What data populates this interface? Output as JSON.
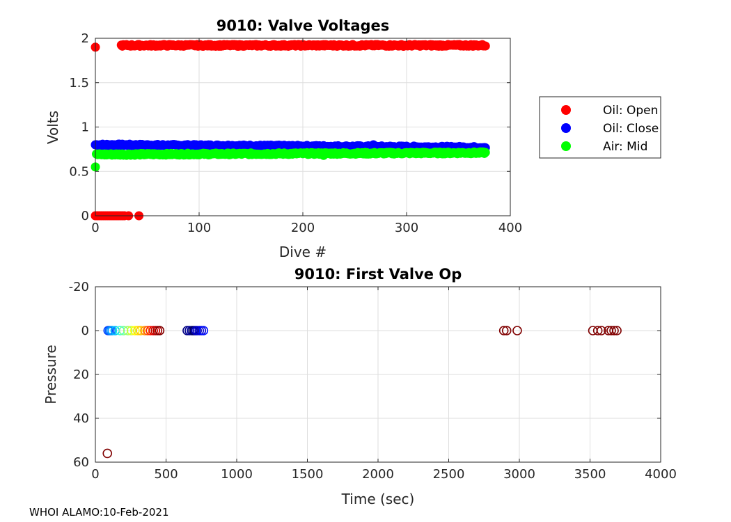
{
  "footer": "WHOI ALAMO:10-Feb-2021",
  "chart_data": [
    {
      "type": "scatter",
      "title": "9010: Valve Voltages",
      "xlabel": "Dive #",
      "ylabel": "Volts",
      "xlim": [
        0,
        400
      ],
      "ylim": [
        0,
        2
      ],
      "xticks": [
        0,
        100,
        200,
        300,
        400
      ],
      "yticks": [
        0,
        0.5,
        1,
        1.5,
        2
      ],
      "xtick_labels": [
        "0",
        "100",
        "200",
        "300",
        "400"
      ],
      "ytick_labels": [
        "0",
        "0.5",
        "1",
        "1.5",
        "2"
      ],
      "grid": true,
      "legend_position": "right-outside",
      "series": [
        {
          "name": "Oil: Open",
          "color": "#ff0000",
          "marker": "filled-circle",
          "dive_range": [
            25,
            376
          ],
          "approx_value": 1.92,
          "extra_points": [
            [
              0,
              1.9
            ],
            [
              0,
              0
            ],
            [
              2,
              0
            ],
            [
              4,
              0
            ],
            [
              6,
              0
            ],
            [
              8,
              0
            ],
            [
              10,
              0
            ],
            [
              12,
              0
            ],
            [
              14,
              0
            ],
            [
              16,
              0
            ],
            [
              18,
              0
            ],
            [
              20,
              0
            ],
            [
              22,
              0
            ],
            [
              24,
              0
            ],
            [
              26,
              0
            ],
            [
              28,
              0
            ],
            [
              32,
              0
            ],
            [
              42,
              0
            ]
          ]
        },
        {
          "name": "Oil: Close",
          "color": "#0000ff",
          "marker": "filled-circle",
          "dive_range": [
            0,
            376
          ],
          "start_value": 0.8,
          "end_value": 0.77,
          "extra_points": [
            [
              268,
              0.8
            ]
          ]
        },
        {
          "name": "Air: Mid",
          "color": "#00ff00",
          "marker": "filled-circle",
          "dive_range": [
            1,
            376
          ],
          "start_value": 0.69,
          "end_value": 0.71,
          "extra_points": [
            [
              0,
              0.55
            ],
            [
              220,
              0.68
            ],
            [
              130,
              0.69
            ]
          ]
        }
      ]
    },
    {
      "type": "scatter",
      "title": "9010: First Valve Op",
      "xlabel": "Time (sec)",
      "ylabel": "Pressure",
      "xlim": [
        0,
        4000
      ],
      "ylim": [
        -20,
        60
      ],
      "y_reversed": true,
      "xticks": [
        0,
        500,
        1000,
        1500,
        2000,
        2500,
        3000,
        3500,
        4000
      ],
      "yticks": [
        -20,
        0,
        20,
        40,
        60
      ],
      "xtick_labels": [
        "0",
        "500",
        "1000",
        "1500",
        "2000",
        "2500",
        "3000",
        "3500",
        "4000"
      ],
      "ytick_labels": [
        "-20",
        "0",
        "20",
        "40",
        "60"
      ],
      "grid": true,
      "marker": "open-circle",
      "color_by": "dive number (jet colormap)",
      "points": [
        {
          "x": 90,
          "y": 0,
          "color": "#0040ff"
        },
        {
          "x": 100,
          "y": 0,
          "color": "#0060ff"
        },
        {
          "x": 110,
          "y": 0,
          "color": "#0080ff"
        },
        {
          "x": 120,
          "y": 0,
          "color": "#00a0ff"
        },
        {
          "x": 140,
          "y": 0,
          "color": "#00c0ff"
        },
        {
          "x": 175,
          "y": 0,
          "color": "#30ffd0"
        },
        {
          "x": 200,
          "y": 0,
          "color": "#70ff90"
        },
        {
          "x": 230,
          "y": 0,
          "color": "#a0ff60"
        },
        {
          "x": 255,
          "y": 0,
          "color": "#d0ff30"
        },
        {
          "x": 280,
          "y": 0,
          "color": "#ffff00"
        },
        {
          "x": 300,
          "y": 0,
          "color": "#ffe000"
        },
        {
          "x": 320,
          "y": 0,
          "color": "#ffc000"
        },
        {
          "x": 350,
          "y": 0,
          "color": "#ff9000"
        },
        {
          "x": 370,
          "y": 0,
          "color": "#ff5000"
        },
        {
          "x": 390,
          "y": 0,
          "color": "#ff2000"
        },
        {
          "x": 410,
          "y": 0,
          "color": "#e00000"
        },
        {
          "x": 425,
          "y": 0,
          "color": "#c00000"
        },
        {
          "x": 440,
          "y": 0,
          "color": "#a00000"
        },
        {
          "x": 455,
          "y": 0,
          "color": "#800000"
        },
        {
          "x": 650,
          "y": 0,
          "color": "#000080"
        },
        {
          "x": 665,
          "y": 0,
          "color": "#000090"
        },
        {
          "x": 680,
          "y": 0,
          "color": "#0000a0"
        },
        {
          "x": 690,
          "y": 0,
          "color": "#000070"
        },
        {
          "x": 700,
          "y": 0,
          "color": "#000060"
        },
        {
          "x": 710,
          "y": 0,
          "color": "#0000b0"
        },
        {
          "x": 720,
          "y": 0,
          "color": "#0000c0"
        },
        {
          "x": 735,
          "y": 0,
          "color": "#0000d0"
        },
        {
          "x": 750,
          "y": 0,
          "color": "#0000e0"
        },
        {
          "x": 765,
          "y": 0,
          "color": "#0010ff"
        },
        {
          "x": 85,
          "y": 56,
          "color": "#800000"
        },
        {
          "x": 2890,
          "y": 0,
          "color": "#800000"
        },
        {
          "x": 2910,
          "y": 0,
          "color": "#800000"
        },
        {
          "x": 2985,
          "y": 0,
          "color": "#800000"
        },
        {
          "x": 3520,
          "y": 0,
          "color": "#800000"
        },
        {
          "x": 3555,
          "y": 0,
          "color": "#800000"
        },
        {
          "x": 3580,
          "y": 0,
          "color": "#800000"
        },
        {
          "x": 3630,
          "y": 0,
          "color": "#800000"
        },
        {
          "x": 3650,
          "y": 0,
          "color": "#800000"
        },
        {
          "x": 3670,
          "y": 0,
          "color": "#800000"
        },
        {
          "x": 3690,
          "y": 0,
          "color": "#800000"
        }
      ]
    }
  ]
}
